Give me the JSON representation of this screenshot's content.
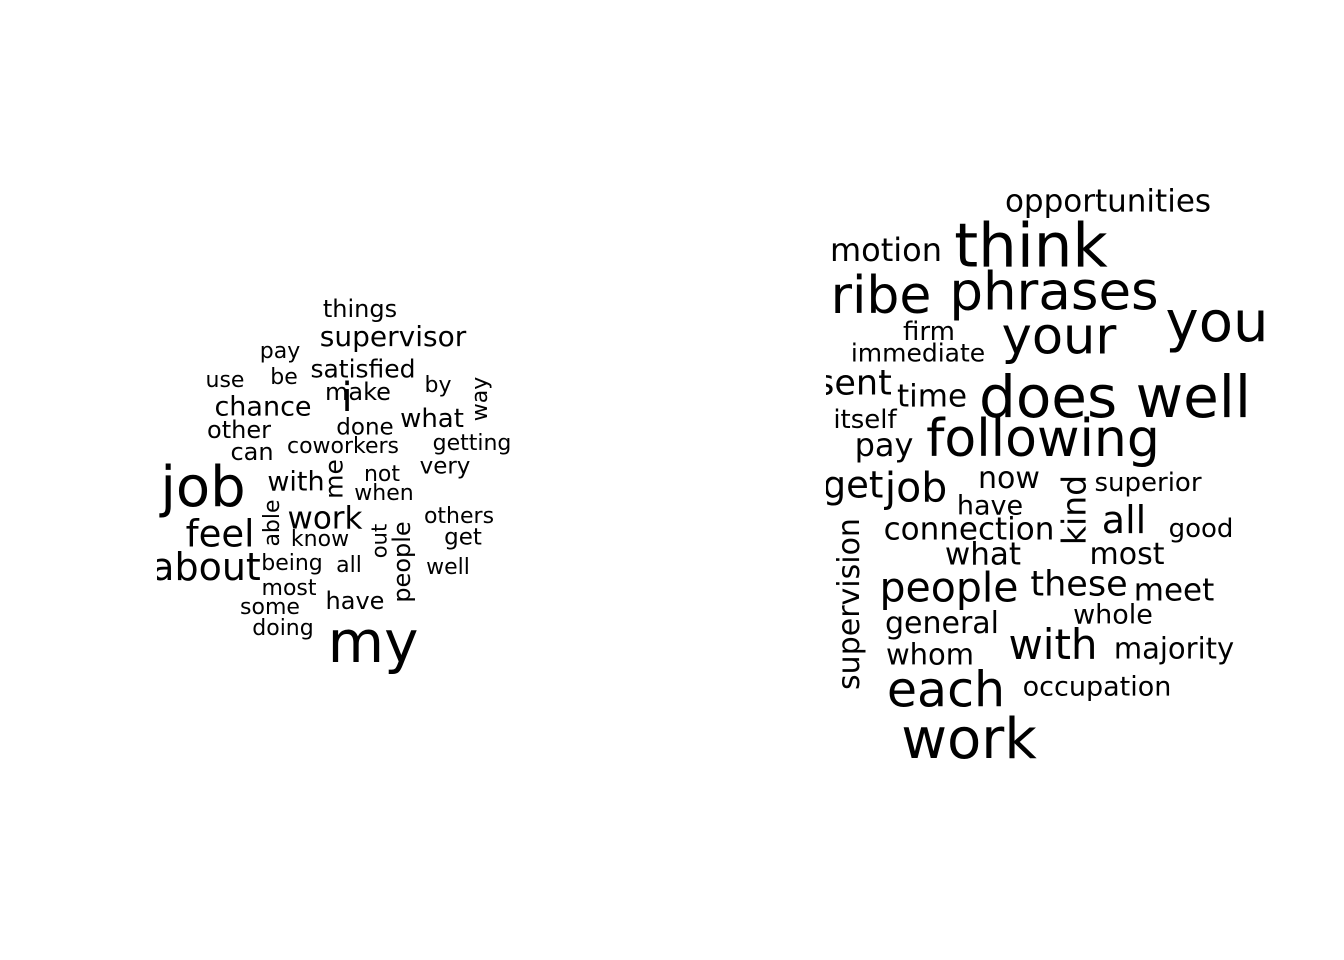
{
  "clouds": [
    {
      "words": [
        {
          "text": "job"
        },
        {
          "text": "my"
        },
        {
          "text": "i"
        },
        {
          "text": "about"
        },
        {
          "text": "feel"
        },
        {
          "text": "supervisor"
        },
        {
          "text": "work"
        },
        {
          "text": "chance"
        },
        {
          "text": "things"
        },
        {
          "text": "satisfied"
        },
        {
          "text": "what"
        },
        {
          "text": "with"
        },
        {
          "text": "me"
        },
        {
          "text": "make"
        },
        {
          "text": "other"
        },
        {
          "text": "can"
        },
        {
          "text": "getting"
        },
        {
          "text": "very"
        },
        {
          "text": "people"
        },
        {
          "text": "have"
        },
        {
          "text": "way"
        },
        {
          "text": "coworkers"
        },
        {
          "text": "done"
        },
        {
          "text": "pay"
        },
        {
          "text": "use"
        },
        {
          "text": "be"
        },
        {
          "text": "by"
        },
        {
          "text": "not"
        },
        {
          "text": "when"
        },
        {
          "text": "able"
        },
        {
          "text": "others"
        },
        {
          "text": "get"
        },
        {
          "text": "know"
        },
        {
          "text": "out"
        },
        {
          "text": "being"
        },
        {
          "text": "all"
        },
        {
          "text": "well"
        },
        {
          "text": "most"
        },
        {
          "text": "some"
        },
        {
          "text": "doing"
        }
      ]
    },
    {
      "words": [
        {
          "text": "opportunities"
        },
        {
          "text": "think"
        },
        {
          "text": "motion"
        },
        {
          "text": "ribe"
        },
        {
          "text": "phrases"
        },
        {
          "text": "you"
        },
        {
          "text": "your"
        },
        {
          "text": "firm"
        },
        {
          "text": "immediate"
        },
        {
          "text": "sent"
        },
        {
          "text": "time"
        },
        {
          "text": "does well"
        },
        {
          "text": "itself"
        },
        {
          "text": "following"
        },
        {
          "text": "pay"
        },
        {
          "text": "get"
        },
        {
          "text": "job"
        },
        {
          "text": "now"
        },
        {
          "text": "superior"
        },
        {
          "text": "have"
        },
        {
          "text": "kind"
        },
        {
          "text": "all"
        },
        {
          "text": "good"
        },
        {
          "text": "connection"
        },
        {
          "text": "supervision"
        },
        {
          "text": "what"
        },
        {
          "text": "most"
        },
        {
          "text": "people"
        },
        {
          "text": "these"
        },
        {
          "text": "meet"
        },
        {
          "text": "whole"
        },
        {
          "text": "general"
        },
        {
          "text": "with"
        },
        {
          "text": "majority"
        },
        {
          "text": "whom"
        },
        {
          "text": "each"
        },
        {
          "text": "occupation"
        },
        {
          "text": "work"
        }
      ]
    }
  ]
}
